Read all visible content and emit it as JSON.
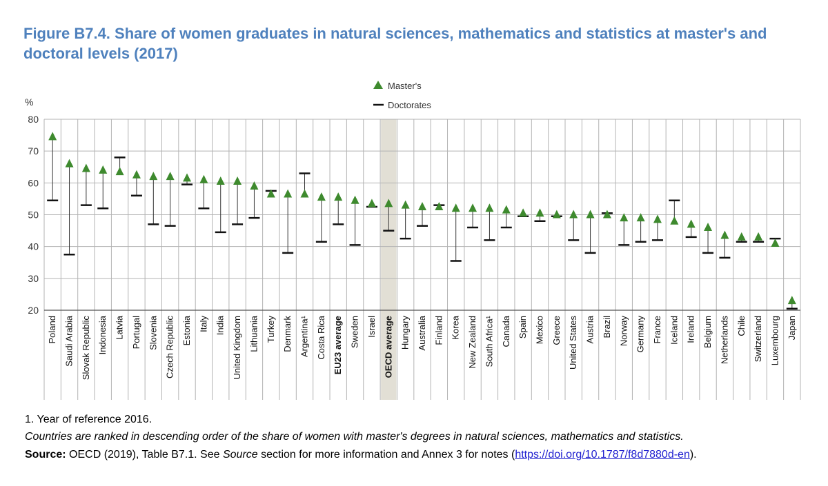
{
  "title": "Figure B7.4. Share of women graduates in natural sciences, mathematics and statistics at master's and doctoral levels (2017)",
  "chart_data": {
    "type": "scatter",
    "ylabel": "%",
    "ylim": [
      20,
      80
    ],
    "yticks": [
      20,
      30,
      40,
      50,
      60,
      70,
      80
    ],
    "legend": {
      "masters": "Master's",
      "doctorates": "Doctorates",
      "position": "top-center"
    },
    "highlighted_category": "OECD average",
    "bold_categories": [
      "EU23 average",
      "OECD average"
    ],
    "categories": [
      "Poland",
      "Saudi Arabia",
      "Slovak Republic",
      "Indonesia",
      "Latvia",
      "Portugal",
      "Slovenia",
      "Czech Republic",
      "Estonia",
      "Italy",
      "India",
      "United Kingdom",
      "Lithuania",
      "Turkey",
      "Denmark",
      "Argentina¹",
      "Costa Rica",
      "EU23 average",
      "Sweden",
      "Israel",
      "OECD average",
      "Hungary",
      "Australia",
      "Finland",
      "Korea",
      "New Zealand",
      "South Africa¹",
      "Canada",
      "Spain",
      "Mexico",
      "Greece",
      "United States",
      "Austria",
      "Brazil",
      "Norway",
      "Germany",
      "France",
      "Iceland",
      "Ireland",
      "Belgium",
      "Netherlands",
      "Chile",
      "Switzerland",
      "Luxembourg",
      "Japan"
    ],
    "series": [
      {
        "name": "Master's",
        "marker": "triangle",
        "values": [
          74.5,
          66,
          64.5,
          64,
          63.5,
          62.5,
          62,
          62,
          61.5,
          61,
          60.5,
          60.5,
          59,
          56.5,
          56.5,
          56.5,
          55.5,
          55.5,
          54.5,
          53.5,
          53.5,
          53,
          52.5,
          52.5,
          52,
          52,
          52,
          51.5,
          50.5,
          50.5,
          50,
          50,
          50,
          50,
          49,
          49,
          48.5,
          48,
          47,
          46,
          43.5,
          43,
          43,
          41,
          23
        ]
      },
      {
        "name": "Doctorates",
        "marker": "dash",
        "values": [
          54.5,
          37.5,
          53,
          52,
          68,
          56,
          47,
          46.5,
          59.5,
          52,
          44.5,
          47,
          49,
          57.5,
          38,
          63,
          41.5,
          47,
          40.5,
          52.5,
          45,
          42.5,
          46.5,
          53,
          35.5,
          46,
          42,
          46,
          49.5,
          48,
          49.5,
          42,
          38,
          50.5,
          40.5,
          41.5,
          42,
          54.5,
          43,
          38,
          36.5,
          41.5,
          41.5,
          42.5,
          20.5
        ]
      }
    ]
  },
  "notes": {
    "footnote": "1. Year of reference 2016.",
    "ranking": "Countries are ranked in descending order of the share of women with master's degrees in natural sciences, mathematics and statistics.",
    "source_label": "Source:",
    "source_text_1": " OECD (2019), Table B7.1. See ",
    "source_italic": "Source",
    "source_text_2": " section for more information and Annex 3 for notes (",
    "source_link": "https://doi.org/10.1787/f8d7880d-en",
    "source_text_3": ")."
  },
  "colors": {
    "title": "#4f81bd",
    "masters_marker": "#3e8a2e",
    "doctorates_marker": "#111111",
    "grid": "#b3b3b3",
    "highlight": "#e2dfd5"
  }
}
